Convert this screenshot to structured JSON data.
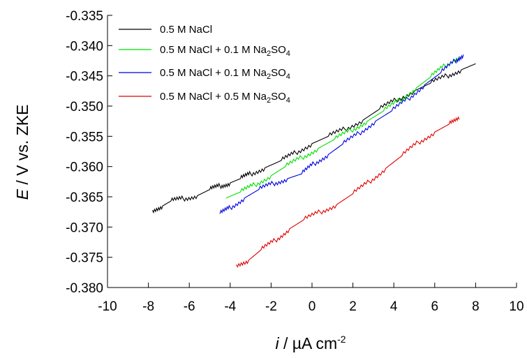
{
  "chart_data": {
    "type": "line",
    "xlabel": {
      "italic": "i",
      "rest": " / µA cm",
      "sup": "-2"
    },
    "ylabel": {
      "italic": "E",
      "rest": " / V vs. ZKE"
    },
    "xlim": [
      -10,
      10
    ],
    "ylim": [
      -0.38,
      -0.335
    ],
    "xticks": [
      -10,
      -8,
      -6,
      -4,
      -2,
      0,
      2,
      4,
      6,
      8,
      10
    ],
    "xtick_labels": [
      "-10",
      "-8",
      "-6",
      "-4",
      "-2",
      "0",
      "2",
      "4",
      "6",
      "8",
      "10"
    ],
    "yticks": [
      -0.335,
      -0.34,
      -0.345,
      -0.35,
      -0.355,
      -0.36,
      -0.365,
      -0.37,
      -0.375,
      -0.38
    ],
    "ytick_labels": [
      "-0.335",
      "-0.340",
      "-0.345",
      "-0.350",
      "-0.355",
      "-0.360",
      "-0.365",
      "-0.370",
      "-0.375",
      "-0.380"
    ],
    "grid": false,
    "legend_position": "top-left",
    "series": [
      {
        "name": "0.5 M NaCl",
        "legend": {
          "text": "0.5 M NaCl",
          "sub": "",
          "tail": ""
        },
        "color": "#000000",
        "points": [
          [
            -7.8,
            -0.3672
          ],
          [
            -7.3,
            -0.3665
          ],
          [
            -6.9,
            -0.3657
          ],
          [
            -6.3,
            -0.3653
          ],
          [
            -5.6,
            -0.3648
          ],
          [
            -5.0,
            -0.3638
          ],
          [
            -4.5,
            -0.3632
          ],
          [
            -4.0,
            -0.3627
          ],
          [
            -3.5,
            -0.362
          ],
          [
            -3.0,
            -0.3612
          ],
          [
            -2.3,
            -0.3602
          ],
          [
            -1.5,
            -0.359
          ],
          [
            -0.8,
            -0.3577
          ],
          [
            0.0,
            -0.3562
          ],
          [
            0.8,
            -0.355
          ],
          [
            1.6,
            -0.3538
          ],
          [
            2.5,
            -0.3523
          ],
          [
            3.3,
            -0.3505
          ],
          [
            4.1,
            -0.349
          ],
          [
            5.0,
            -0.3475
          ],
          [
            5.8,
            -0.3462
          ],
          [
            6.6,
            -0.345
          ],
          [
            7.3,
            -0.344
          ],
          [
            8.0,
            -0.343
          ]
        ]
      },
      {
        "name": "0.5 M NaCl + 0.1 M Na2SO4",
        "legend": {
          "text": "0.5 M NaCl + 0.1 M Na",
          "sub": "2",
          "tail": "SO",
          "sub2": "4"
        },
        "color": "#00e000",
        "points": [
          [
            -4.2,
            -0.3652
          ],
          [
            -3.5,
            -0.3642
          ],
          [
            -2.8,
            -0.363
          ],
          [
            -2.0,
            -0.3615
          ],
          [
            -1.3,
            -0.36
          ],
          [
            -0.5,
            -0.3585
          ],
          [
            0.3,
            -0.357
          ],
          [
            1.1,
            -0.3555
          ],
          [
            1.9,
            -0.354
          ],
          [
            2.7,
            -0.3525
          ],
          [
            3.5,
            -0.3508
          ],
          [
            4.3,
            -0.349
          ],
          [
            5.1,
            -0.347
          ],
          [
            5.8,
            -0.3452
          ],
          [
            6.5,
            -0.3433
          ],
          [
            7.2,
            -0.3418
          ]
        ]
      },
      {
        "name": "0.5 M NaCl + 0.1 M Na2SO4",
        "legend": {
          "text": "0.5 M NaCl + 0.1 M Na",
          "sub": "2",
          "tail": "SO",
          "sub2": "4"
        },
        "color": "#0000e0",
        "points": [
          [
            -4.5,
            -0.3678
          ],
          [
            -4.0,
            -0.3668
          ],
          [
            -3.3,
            -0.3652
          ],
          [
            -2.6,
            -0.3638
          ],
          [
            -1.9,
            -0.3628
          ],
          [
            -1.2,
            -0.362
          ],
          [
            -0.5,
            -0.3612
          ],
          [
            0.1,
            -0.3595
          ],
          [
            0.8,
            -0.358
          ],
          [
            1.5,
            -0.3563
          ],
          [
            2.3,
            -0.3545
          ],
          [
            3.1,
            -0.3525
          ],
          [
            3.9,
            -0.3508
          ],
          [
            4.7,
            -0.3488
          ],
          [
            5.5,
            -0.3465
          ],
          [
            6.3,
            -0.3445
          ],
          [
            7.0,
            -0.3425
          ],
          [
            7.4,
            -0.3415
          ]
        ]
      },
      {
        "name": "0.5 M NaCl + 0.5 M Na2SO4",
        "legend": {
          "text": "0.5 M NaCl + 0.5 M Na",
          "sub": "2",
          "tail": "SO",
          "sub2": "4"
        },
        "color": "#e00000",
        "points": [
          [
            -3.7,
            -0.3762
          ],
          [
            -3.1,
            -0.3755
          ],
          [
            -2.5,
            -0.3738
          ],
          [
            -1.8,
            -0.3722
          ],
          [
            -1.1,
            -0.3703
          ],
          [
            -0.4,
            -0.3688
          ],
          [
            0.4,
            -0.3675
          ],
          [
            1.2,
            -0.3663
          ],
          [
            2.0,
            -0.3645
          ],
          [
            2.8,
            -0.3625
          ],
          [
            3.6,
            -0.3603
          ],
          [
            4.4,
            -0.3582
          ],
          [
            5.2,
            -0.356
          ],
          [
            6.0,
            -0.3543
          ],
          [
            6.7,
            -0.353
          ],
          [
            7.2,
            -0.3522
          ]
        ]
      }
    ]
  }
}
